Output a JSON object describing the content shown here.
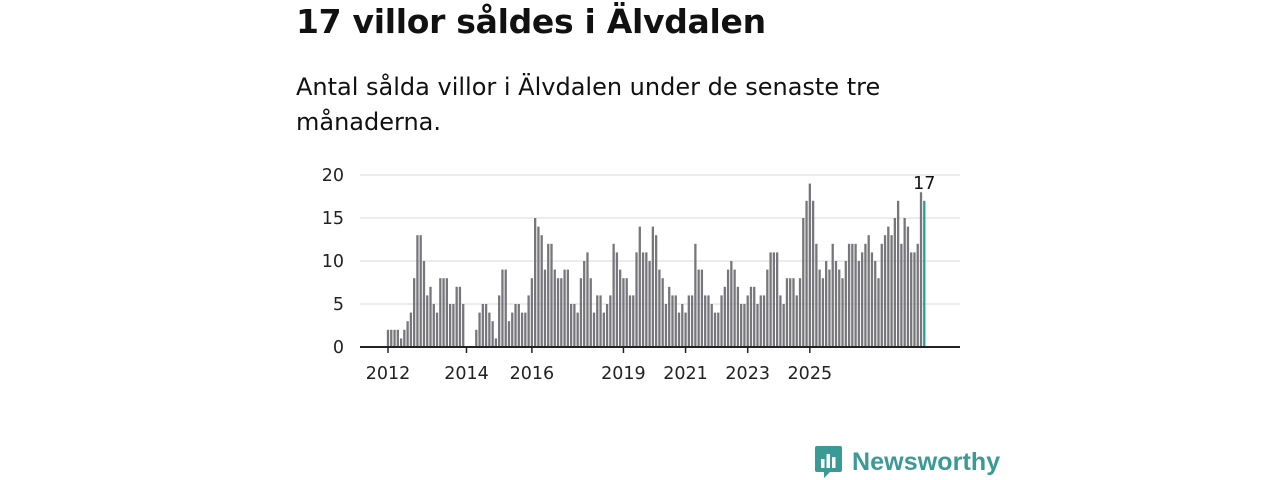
{
  "title": "17 villor såldes i Älvdalen",
  "subtitle": "Antal sålda villor i Älvdalen under de senaste tre månaderna.",
  "brand": {
    "name": "Newsworthy"
  },
  "colors": {
    "bar": "#77777b",
    "highlight": "#2a9d96",
    "grid": "#d9d9d9",
    "axis": "#222222",
    "brand": "#3a9a96"
  },
  "chart_data": {
    "type": "bar",
    "title": "17 villor såldes i Älvdalen",
    "xlabel": "",
    "ylabel": "",
    "ylim": [
      0,
      20
    ],
    "yticks": [
      "0",
      "5",
      "10",
      "15",
      "20"
    ],
    "xticks": [
      "2012",
      "2014",
      "2016",
      "2019",
      "2021",
      "2023",
      "2025"
    ],
    "xtick_index": [
      0,
      24,
      44,
      72,
      91,
      110,
      129
    ],
    "annotation": "17",
    "highlight_last": true,
    "grid": true,
    "values": [
      2,
      2,
      2,
      2,
      1,
      2,
      3,
      4,
      8,
      13,
      13,
      10,
      6,
      7,
      5,
      4,
      8,
      8,
      8,
      5,
      5,
      7,
      7,
      5,
      0,
      0,
      0,
      2,
      4,
      5,
      5,
      4,
      3,
      1,
      6,
      9,
      9,
      3,
      4,
      5,
      5,
      4,
      4,
      6,
      8,
      15,
      14,
      13,
      9,
      12,
      12,
      9,
      8,
      8,
      9,
      9,
      5,
      5,
      4,
      8,
      10,
      11,
      8,
      4,
      6,
      6,
      4,
      5,
      6,
      12,
      11,
      9,
      8,
      8,
      6,
      6,
      11,
      14,
      11,
      11,
      10,
      14,
      13,
      9,
      8,
      5,
      7,
      6,
      6,
      4,
      5,
      4,
      6,
      6,
      12,
      9,
      9,
      6,
      6,
      5,
      4,
      4,
      6,
      7,
      9,
      10,
      9,
      7,
      5,
      5,
      6,
      7,
      7,
      5,
      6,
      6,
      9,
      11,
      11,
      11,
      6,
      5,
      8,
      8,
      8,
      6,
      8,
      15,
      17,
      19,
      17,
      12,
      9,
      8,
      10,
      9,
      12,
      10,
      9,
      8,
      10,
      12,
      12,
      12,
      10,
      11,
      12,
      13,
      11,
      10,
      8,
      12,
      13,
      14,
      13,
      15,
      17,
      12,
      15,
      14,
      11,
      11,
      12,
      18,
      17
    ]
  }
}
